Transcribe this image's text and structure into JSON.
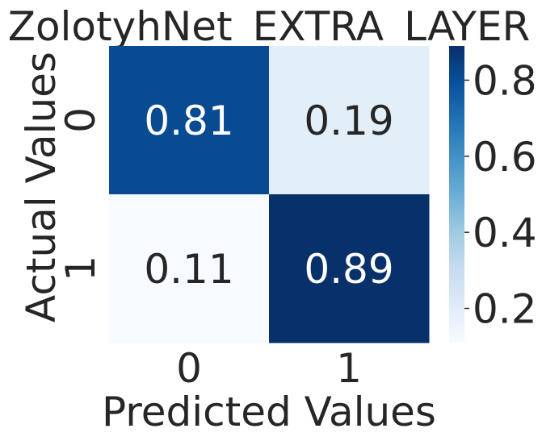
{
  "chart_data": {
    "type": "heatmap",
    "title": "ZolotyhNet_EXTRA_LAYER",
    "xlabel": "Predicted Values",
    "ylabel": "Actual Values",
    "x_categories": [
      "0",
      "1"
    ],
    "y_categories": [
      "0",
      "1"
    ],
    "values": [
      [
        0.81,
        0.19
      ],
      [
        0.11,
        0.89
      ]
    ],
    "annotations": [
      [
        "0.81",
        "0.19"
      ],
      [
        "0.11",
        "0.89"
      ]
    ],
    "colormap": "Blues",
    "colorbar": {
      "min": 0.11,
      "max": 0.89,
      "ticks": [
        0.2,
        0.4,
        0.6,
        0.8
      ],
      "tick_labels": [
        "0.2",
        "0.4",
        "0.6",
        "0.8"
      ]
    },
    "colors": {
      "low": "#f7fbff",
      "high": "#08306b",
      "text_dark": "#262626",
      "text_light": "#ffffff"
    }
  }
}
